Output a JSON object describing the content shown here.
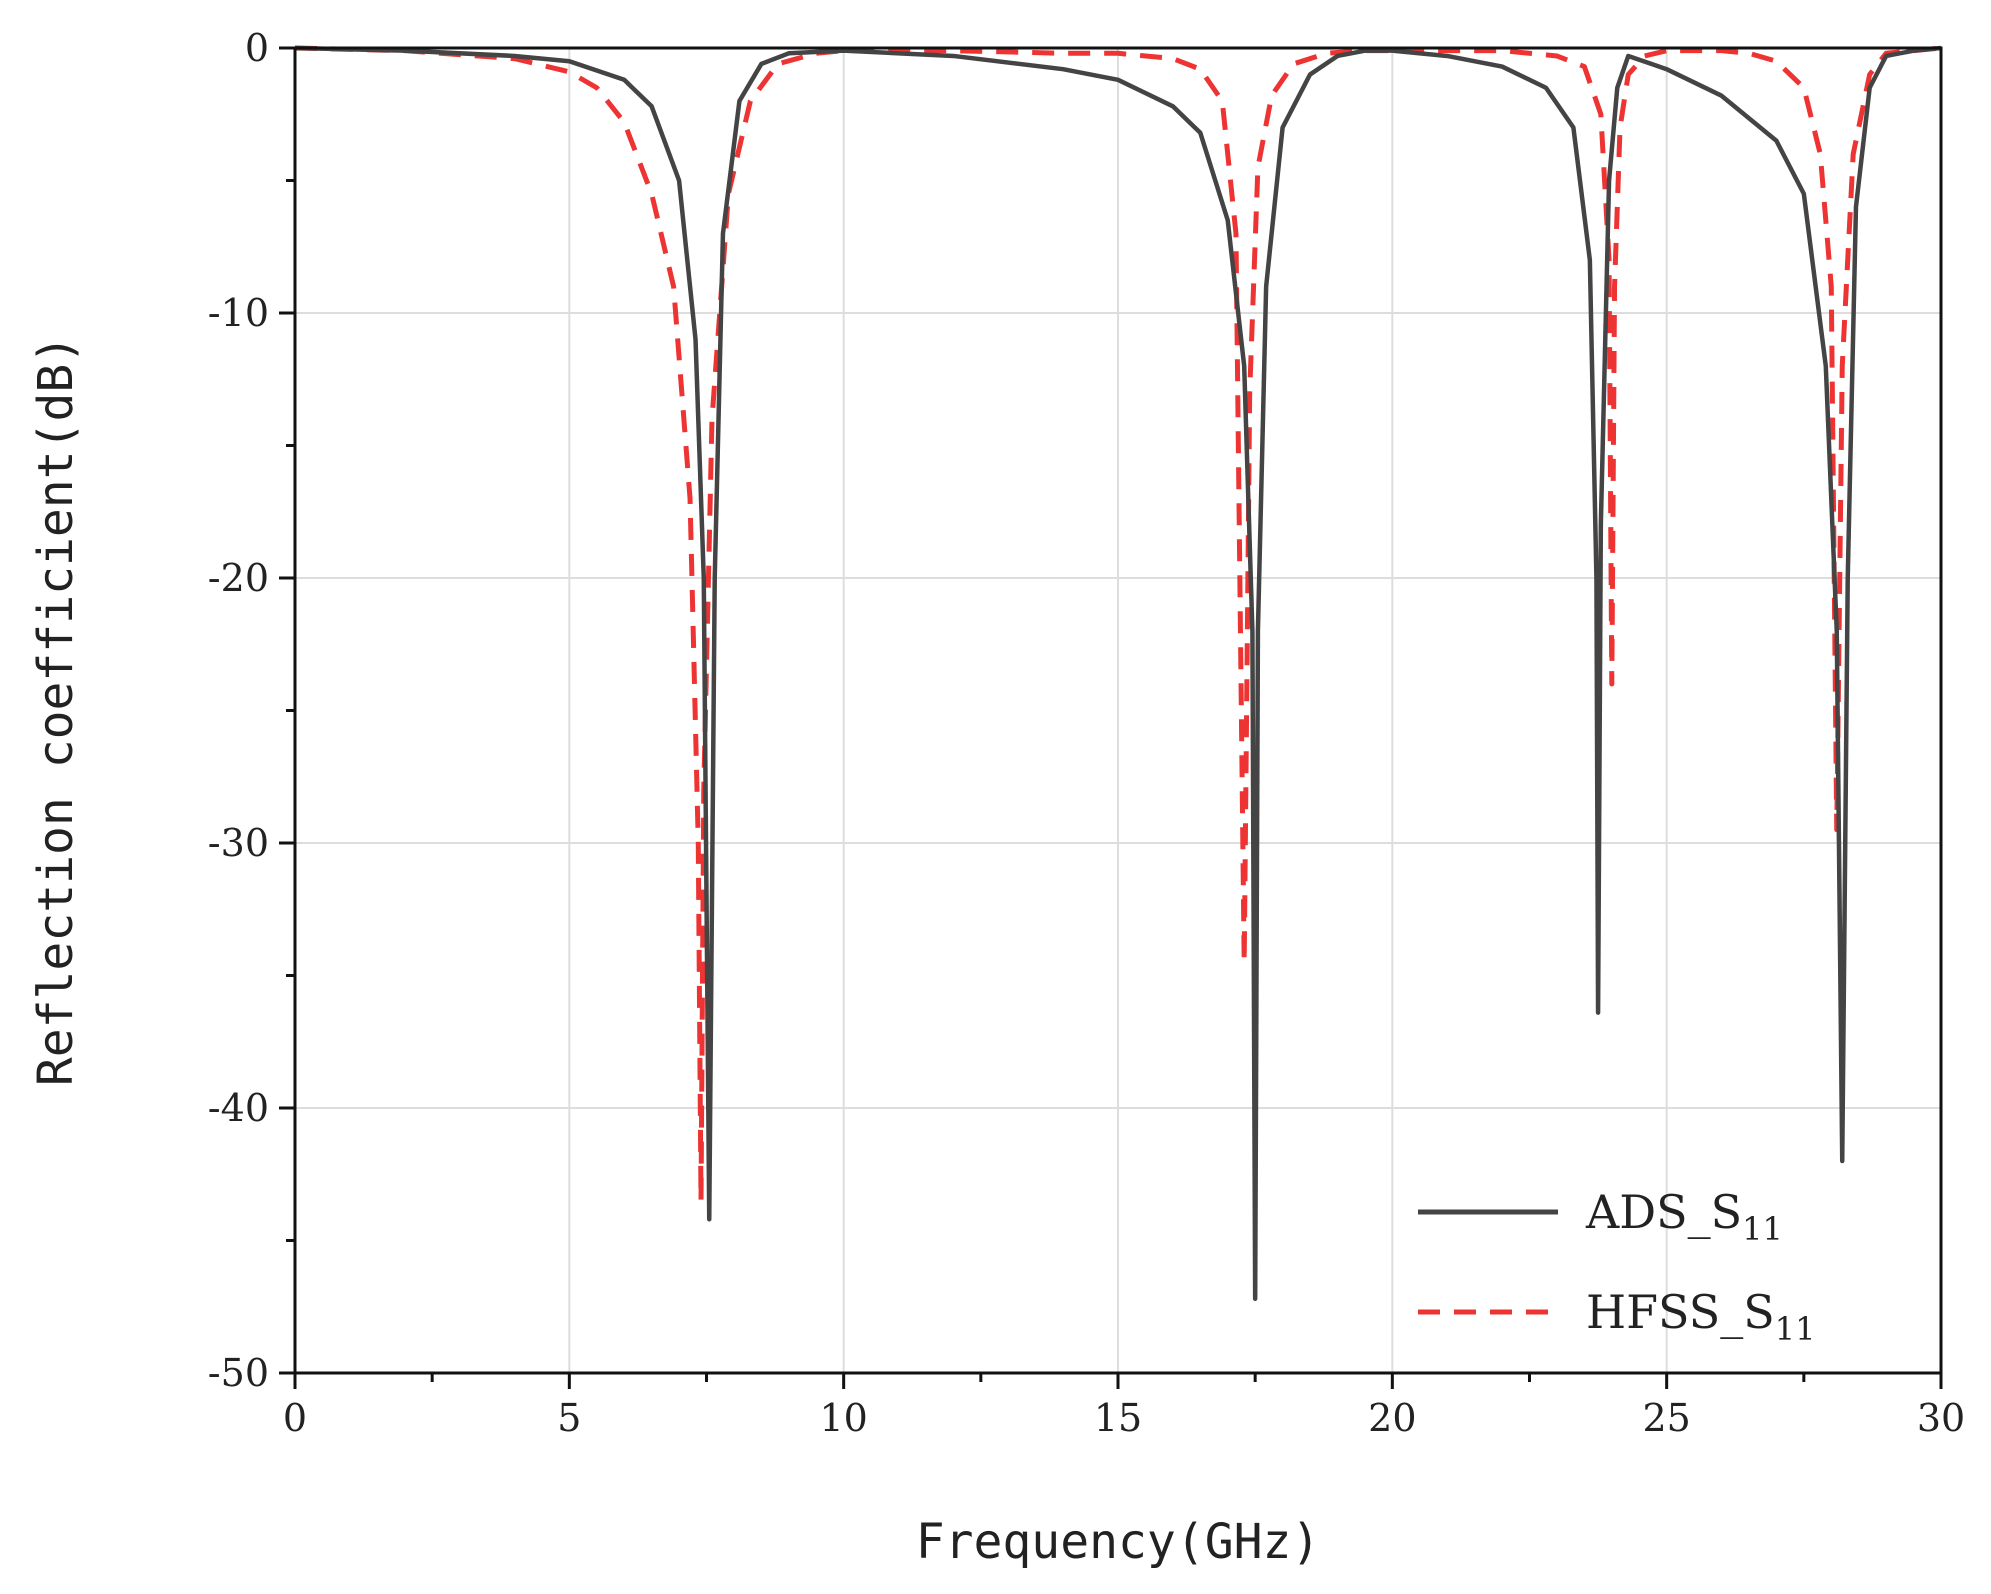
{
  "chart_data": {
    "type": "line",
    "title": "",
    "xlabel": "Frequency(GHz)",
    "ylabel": "Reflection coefficient(dB)",
    "xlim": [
      0,
      30
    ],
    "ylim": [
      -50,
      0
    ],
    "xticks": [
      0,
      5,
      10,
      15,
      20,
      25,
      30
    ],
    "yticks": [
      0,
      -10,
      -20,
      -30,
      -40,
      -50
    ],
    "xtick_labels": [
      "0",
      "5",
      "10",
      "15",
      "20",
      "25",
      "30"
    ],
    "ytick_labels": [
      "0",
      "-10",
      "-20",
      "-30",
      "-40",
      "-50"
    ],
    "grid": true,
    "legend_position": "bottom-right",
    "series": [
      {
        "name": "ADS_S11",
        "label_main": "ADS_S",
        "label_sub": "11",
        "color": "#444444",
        "style": "solid",
        "resonances": [
          {
            "f": 7.55,
            "min": -44.2
          },
          {
            "f": 17.5,
            "min": -47.2
          },
          {
            "f": 23.75,
            "min": -36.4
          },
          {
            "f": 28.2,
            "min": -42.0
          }
        ],
        "x": [
          0,
          2,
          4,
          5,
          6,
          6.5,
          7.0,
          7.3,
          7.45,
          7.55,
          7.65,
          7.8,
          8.1,
          8.5,
          9.0,
          10,
          12,
          14,
          15,
          16,
          16.5,
          17.0,
          17.3,
          17.45,
          17.5,
          17.55,
          17.7,
          18.0,
          18.5,
          19.0,
          19.5,
          20,
          21,
          22,
          22.8,
          23.3,
          23.6,
          23.72,
          23.75,
          23.8,
          23.95,
          24.1,
          24.3,
          25,
          26,
          27,
          27.5,
          27.9,
          28.1,
          28.2,
          28.3,
          28.45,
          28.7,
          29.0,
          29.5,
          30
        ],
        "y": [
          0,
          -0.1,
          -0.3,
          -0.5,
          -1.2,
          -2.2,
          -5.0,
          -11.0,
          -20.0,
          -44.2,
          -20.0,
          -7.0,
          -2.0,
          -0.6,
          -0.2,
          -0.1,
          -0.3,
          -0.8,
          -1.2,
          -2.2,
          -3.2,
          -6.5,
          -12.0,
          -22.0,
          -47.2,
          -22.0,
          -9.0,
          -3.0,
          -1.0,
          -0.3,
          -0.1,
          -0.1,
          -0.3,
          -0.7,
          -1.5,
          -3.0,
          -8.0,
          -20.0,
          -36.4,
          -18.0,
          -5.0,
          -1.5,
          -0.3,
          -0.8,
          -1.8,
          -3.5,
          -5.5,
          -12.0,
          -22.0,
          -42.0,
          -20.0,
          -6.0,
          -1.5,
          -0.3,
          -0.1,
          0
        ]
      },
      {
        "name": "HFSS_S11",
        "label_main": "HFSS_S",
        "label_sub": "11",
        "color": "#ee3333",
        "style": "dashed",
        "resonances": [
          {
            "f": 7.4,
            "min": -43.5
          },
          {
            "f": 17.3,
            "min": -34.5
          },
          {
            "f": 24.0,
            "min": -24.0
          },
          {
            "f": 28.1,
            "min": -29.5
          }
        ],
        "x": [
          0,
          2,
          4,
          5,
          5.5,
          6.0,
          6.5,
          6.9,
          7.2,
          7.35,
          7.4,
          7.45,
          7.6,
          7.9,
          8.3,
          8.8,
          9.5,
          10,
          12,
          14,
          15,
          16,
          16.5,
          16.9,
          17.15,
          17.3,
          17.4,
          17.55,
          17.8,
          18.2,
          18.8,
          19.5,
          20,
          21,
          22,
          23.0,
          23.5,
          23.8,
          23.95,
          24.0,
          24.05,
          24.15,
          24.3,
          24.6,
          25,
          26,
          26.5,
          27.0,
          27.5,
          27.8,
          28.0,
          28.1,
          28.2,
          28.4,
          28.7,
          29.0,
          29.5,
          30
        ],
        "y": [
          0,
          -0.1,
          -0.4,
          -0.9,
          -1.5,
          -2.8,
          -5.5,
          -9.0,
          -17.0,
          -30.0,
          -43.5,
          -28.0,
          -14.0,
          -5.5,
          -2.0,
          -0.6,
          -0.2,
          -0.1,
          -0.1,
          -0.2,
          -0.2,
          -0.4,
          -0.8,
          -2.0,
          -7.0,
          -34.5,
          -13.0,
          -4.5,
          -1.8,
          -0.6,
          -0.2,
          -0.1,
          -0.1,
          -0.1,
          -0.1,
          -0.3,
          -0.7,
          -2.5,
          -8.0,
          -24.0,
          -9.0,
          -3.0,
          -1.0,
          -0.3,
          -0.1,
          -0.1,
          -0.2,
          -0.5,
          -1.5,
          -4.0,
          -9.0,
          -29.5,
          -12.0,
          -4.0,
          -1.0,
          -0.2,
          -0.1,
          0
        ]
      }
    ]
  }
}
